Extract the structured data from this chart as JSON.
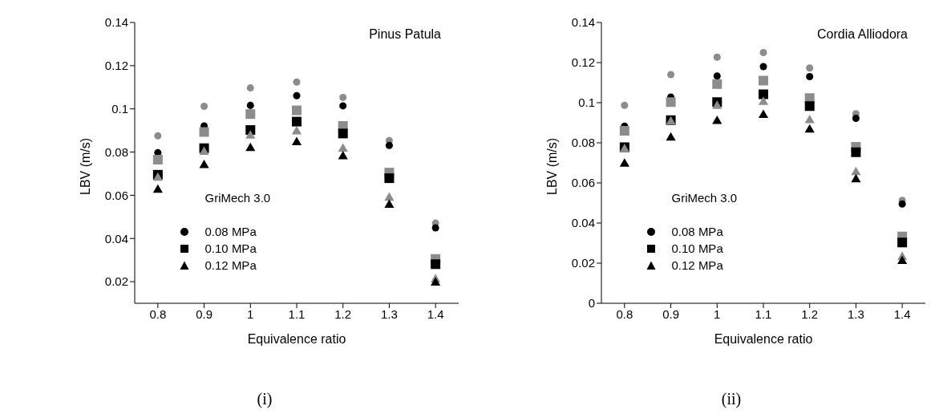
{
  "chart_data": [
    {
      "type": "scatter",
      "title": "Pinus Patula",
      "xlabel": "Equivalence ratio",
      "ylabel": "LBV (m/s)",
      "legend_title": "GriMech 3.0",
      "annotations": [
        "(i)"
      ],
      "xlim": [
        0.75,
        1.45
      ],
      "xticks": [
        0.8,
        0.9,
        1,
        1.1,
        1.2,
        1.3,
        1.4
      ],
      "ylim": [
        0.01,
        0.14
      ],
      "yticks": [
        0.02,
        0.04,
        0.06,
        0.08,
        0.1,
        0.12,
        0.14
      ],
      "grid": false,
      "legend": "bottom",
      "x": [
        0.8,
        0.9,
        1,
        1.1,
        1.2,
        1.3,
        1.4
      ],
      "series": [
        {
          "color": "#8c8c8c",
          "marker": "circle",
          "values": [
            0.0875,
            0.1012,
            0.1097,
            0.1124,
            0.1053,
            0.0853,
            0.0471
          ]
        },
        {
          "name": "0.08 MPa",
          "color": "#000000",
          "marker": "circle",
          "values": [
            0.0797,
            0.0921,
            0.1016,
            0.1061,
            0.1014,
            0.0831,
            0.0449
          ]
        },
        {
          "color": "#8c8c8c",
          "marker": "square",
          "values": [
            0.0765,
            0.0893,
            0.0976,
            0.0993,
            0.0921,
            0.0705,
            0.0305
          ]
        },
        {
          "name": "0.10 MPa",
          "color": "#000000",
          "marker": "square",
          "values": [
            0.0695,
            0.0818,
            0.0902,
            0.0941,
            0.0886,
            0.0679,
            0.0281
          ]
        },
        {
          "color": "#8c8c8c",
          "marker": "triangle",
          "values": [
            0.068,
            0.08,
            0.0875,
            0.0895,
            0.0815,
            0.0588,
            0.021
          ]
        },
        {
          "name": "0.12 MPa",
          "color": "#000000",
          "marker": "triangle",
          "values": [
            0.0625,
            0.0739,
            0.0818,
            0.0845,
            0.078,
            0.0555,
            0.0195
          ]
        }
      ]
    },
    {
      "type": "scatter",
      "title": "Cordia Alliodora",
      "xlabel": "Equivalence ratio",
      "ylabel": "LBV (m/s)",
      "legend_title": "GriMech 3.0",
      "annotations": [
        "(ii)"
      ],
      "xlim": [
        0.75,
        1.45
      ],
      "xticks": [
        0.8,
        0.9,
        1,
        1.1,
        1.2,
        1.3,
        1.4
      ],
      "ylim": [
        0,
        0.14
      ],
      "yticks": [
        0,
        0.02,
        0.04,
        0.06,
        0.08,
        0.1,
        0.12,
        0.14
      ],
      "grid": false,
      "legend": "bottom",
      "x": [
        0.8,
        0.9,
        1,
        1.1,
        1.2,
        1.3,
        1.4
      ],
      "series": [
        {
          "color": "#8c8c8c",
          "marker": "circle",
          "values": [
            0.0987,
            0.114,
            0.1227,
            0.125,
            0.1173,
            0.0945,
            0.0513
          ]
        },
        {
          "name": "0.08 MPa",
          "color": "#000000",
          "marker": "circle",
          "values": [
            0.0883,
            0.1028,
            0.1133,
            0.118,
            0.113,
            0.0922,
            0.0495
          ]
        },
        {
          "color": "#8c8c8c",
          "marker": "square",
          "values": [
            0.086,
            0.1003,
            0.1093,
            0.111,
            0.1023,
            0.078,
            0.0333
          ]
        },
        {
          "name": "0.10 MPa",
          "color": "#000000",
          "marker": "square",
          "values": [
            0.0778,
            0.0913,
            0.1003,
            0.1042,
            0.0983,
            0.0753,
            0.0303
          ]
        },
        {
          "color": "#8c8c8c",
          "marker": "triangle",
          "values": [
            0.0768,
            0.0905,
            0.0983,
            0.1003,
            0.0912,
            0.0653,
            0.023
          ]
        },
        {
          "name": "0.12 MPa",
          "color": "#000000",
          "marker": "triangle",
          "values": [
            0.0695,
            0.0825,
            0.0908,
            0.0938,
            0.0865,
            0.0617,
            0.021
          ]
        }
      ]
    }
  ]
}
